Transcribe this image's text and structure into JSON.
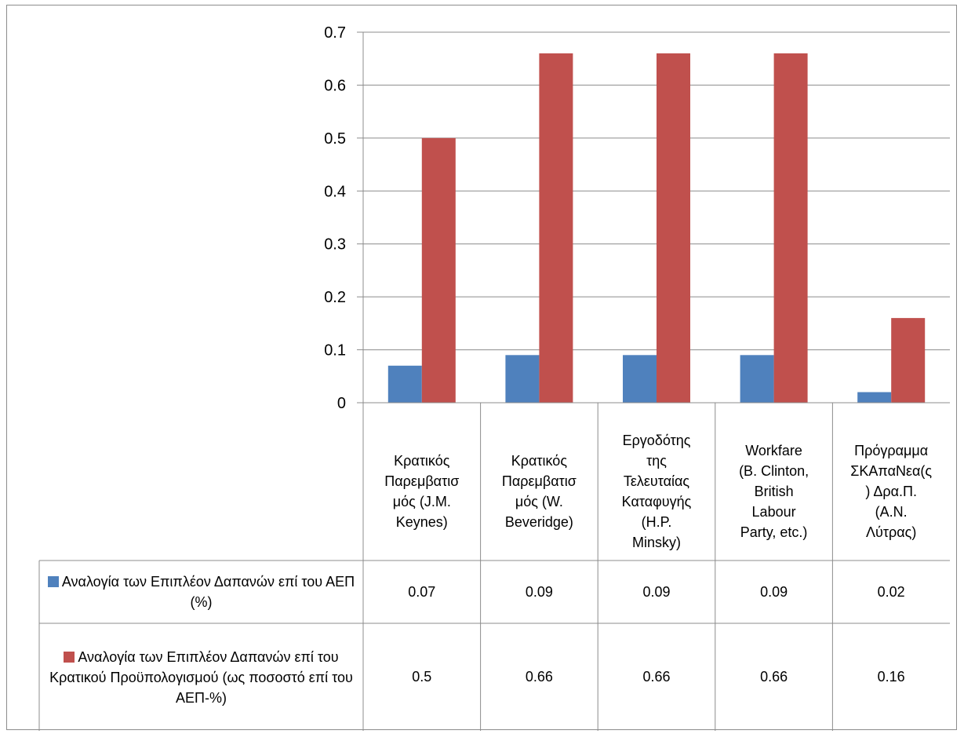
{
  "chart_data": {
    "type": "bar",
    "categories": [
      "Κρατικός Παρεμβατισ μός (J.M. Keynes)",
      "Κρατικός Παρεμβατισ μός (W. Beveridge)",
      "Εργοδότης της Τελευταίας Καταφυγής (H.P. Minsky)",
      "Workfare (B. Clinton, British Labour Party, etc.)",
      "Πρόγραμμα ΣΚΑπαΝεα(ς ) Δρα.Π. (Α.Ν. Λύτρας)"
    ],
    "category_lines": [
      [
        "Κρατικός",
        "Παρεμβατισ",
        "μός (J.M.",
        "Keynes)"
      ],
      [
        "Κρατικός",
        "Παρεμβατισ",
        "μός (W.",
        "Beveridge)"
      ],
      [
        "Εργοδότης",
        "της",
        "Τελευταίας",
        "Καταφυγής",
        "(H.P.",
        "Minsky)"
      ],
      [
        "Workfare",
        "(B. Clinton,",
        "British",
        "Labour",
        "Party, etc.)"
      ],
      [
        "Πρόγραμμα",
        "ΣΚΑπαΝεα(ς",
        ") Δρα.Π.",
        "(Α.Ν.",
        "Λύτρας)"
      ]
    ],
    "series": [
      {
        "name": "Αναλογία των Επιπλέον Δαπανών επί του ΑΕΠ (%)",
        "values": [
          0.07,
          0.09,
          0.09,
          0.09,
          0.02
        ],
        "value_labels": [
          "0.07",
          "0.09",
          "0.09",
          "0.09",
          "0.02"
        ],
        "color": "#4f81bd"
      },
      {
        "name": "Αναλογία των Επιπλέον Δαπανών επί του Κρατικού Προϋπολογισμού (ως ποσοστό επί του ΑΕΠ-%)",
        "values": [
          0.5,
          0.66,
          0.66,
          0.66,
          0.16
        ],
        "value_labels": [
          "0.5",
          "0.66",
          "0.66",
          "0.66",
          "0.16"
        ],
        "color": "#c0504d"
      }
    ],
    "y_ticks": [
      "0",
      "0.1",
      "0.2",
      "0.3",
      "0.4",
      "0.5",
      "0.6",
      "0.7"
    ],
    "ylim": [
      0,
      0.7
    ],
    "grid": true,
    "legend": "data-table",
    "title": "",
    "xlabel": "",
    "ylabel": "",
    "gridline_color": "#8c8c8c"
  }
}
